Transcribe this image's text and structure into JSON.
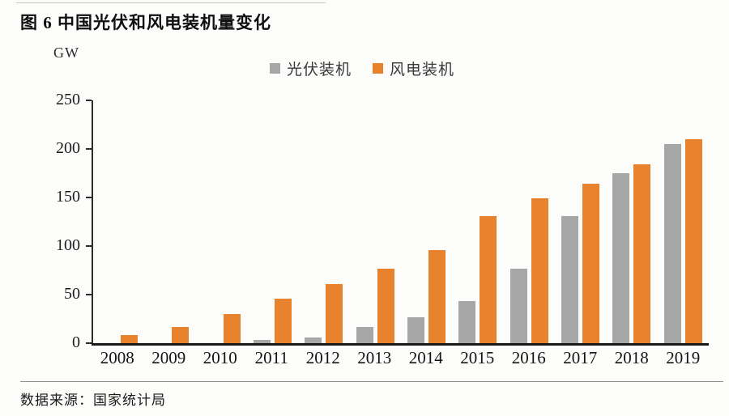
{
  "page": {
    "title": "图 6 中国光伏和风电装机量变化",
    "unit_label": "GW",
    "source_note": "数据来源：国家统计局"
  },
  "legend": {
    "items": [
      {
        "label": "光伏装机",
        "color": "#a7a7a7"
      },
      {
        "label": "风电装机",
        "color": "#e8822c"
      }
    ]
  },
  "chart_data": {
    "type": "bar",
    "title": "图 6 中国光伏和风电装机量变化",
    "xlabel": "",
    "ylabel": "GW",
    "ylim": [
      0,
      250
    ],
    "yticks": [
      0,
      50,
      100,
      150,
      200,
      250
    ],
    "grid": false,
    "legend_position": "top-center",
    "categories": [
      "2008",
      "2009",
      "2010",
      "2011",
      "2012",
      "2013",
      "2014",
      "2015",
      "2016",
      "2017",
      "2018",
      "2019"
    ],
    "series": [
      {
        "name": "光伏装机",
        "color": "#a7a7a7",
        "values": [
          0,
          0,
          0,
          3,
          6,
          17,
          27,
          43,
          77,
          131,
          175,
          205
        ]
      },
      {
        "name": "风电装机",
        "color": "#e8822c",
        "values": [
          8,
          17,
          30,
          46,
          61,
          77,
          96,
          131,
          149,
          164,
          184,
          210
        ]
      }
    ]
  }
}
